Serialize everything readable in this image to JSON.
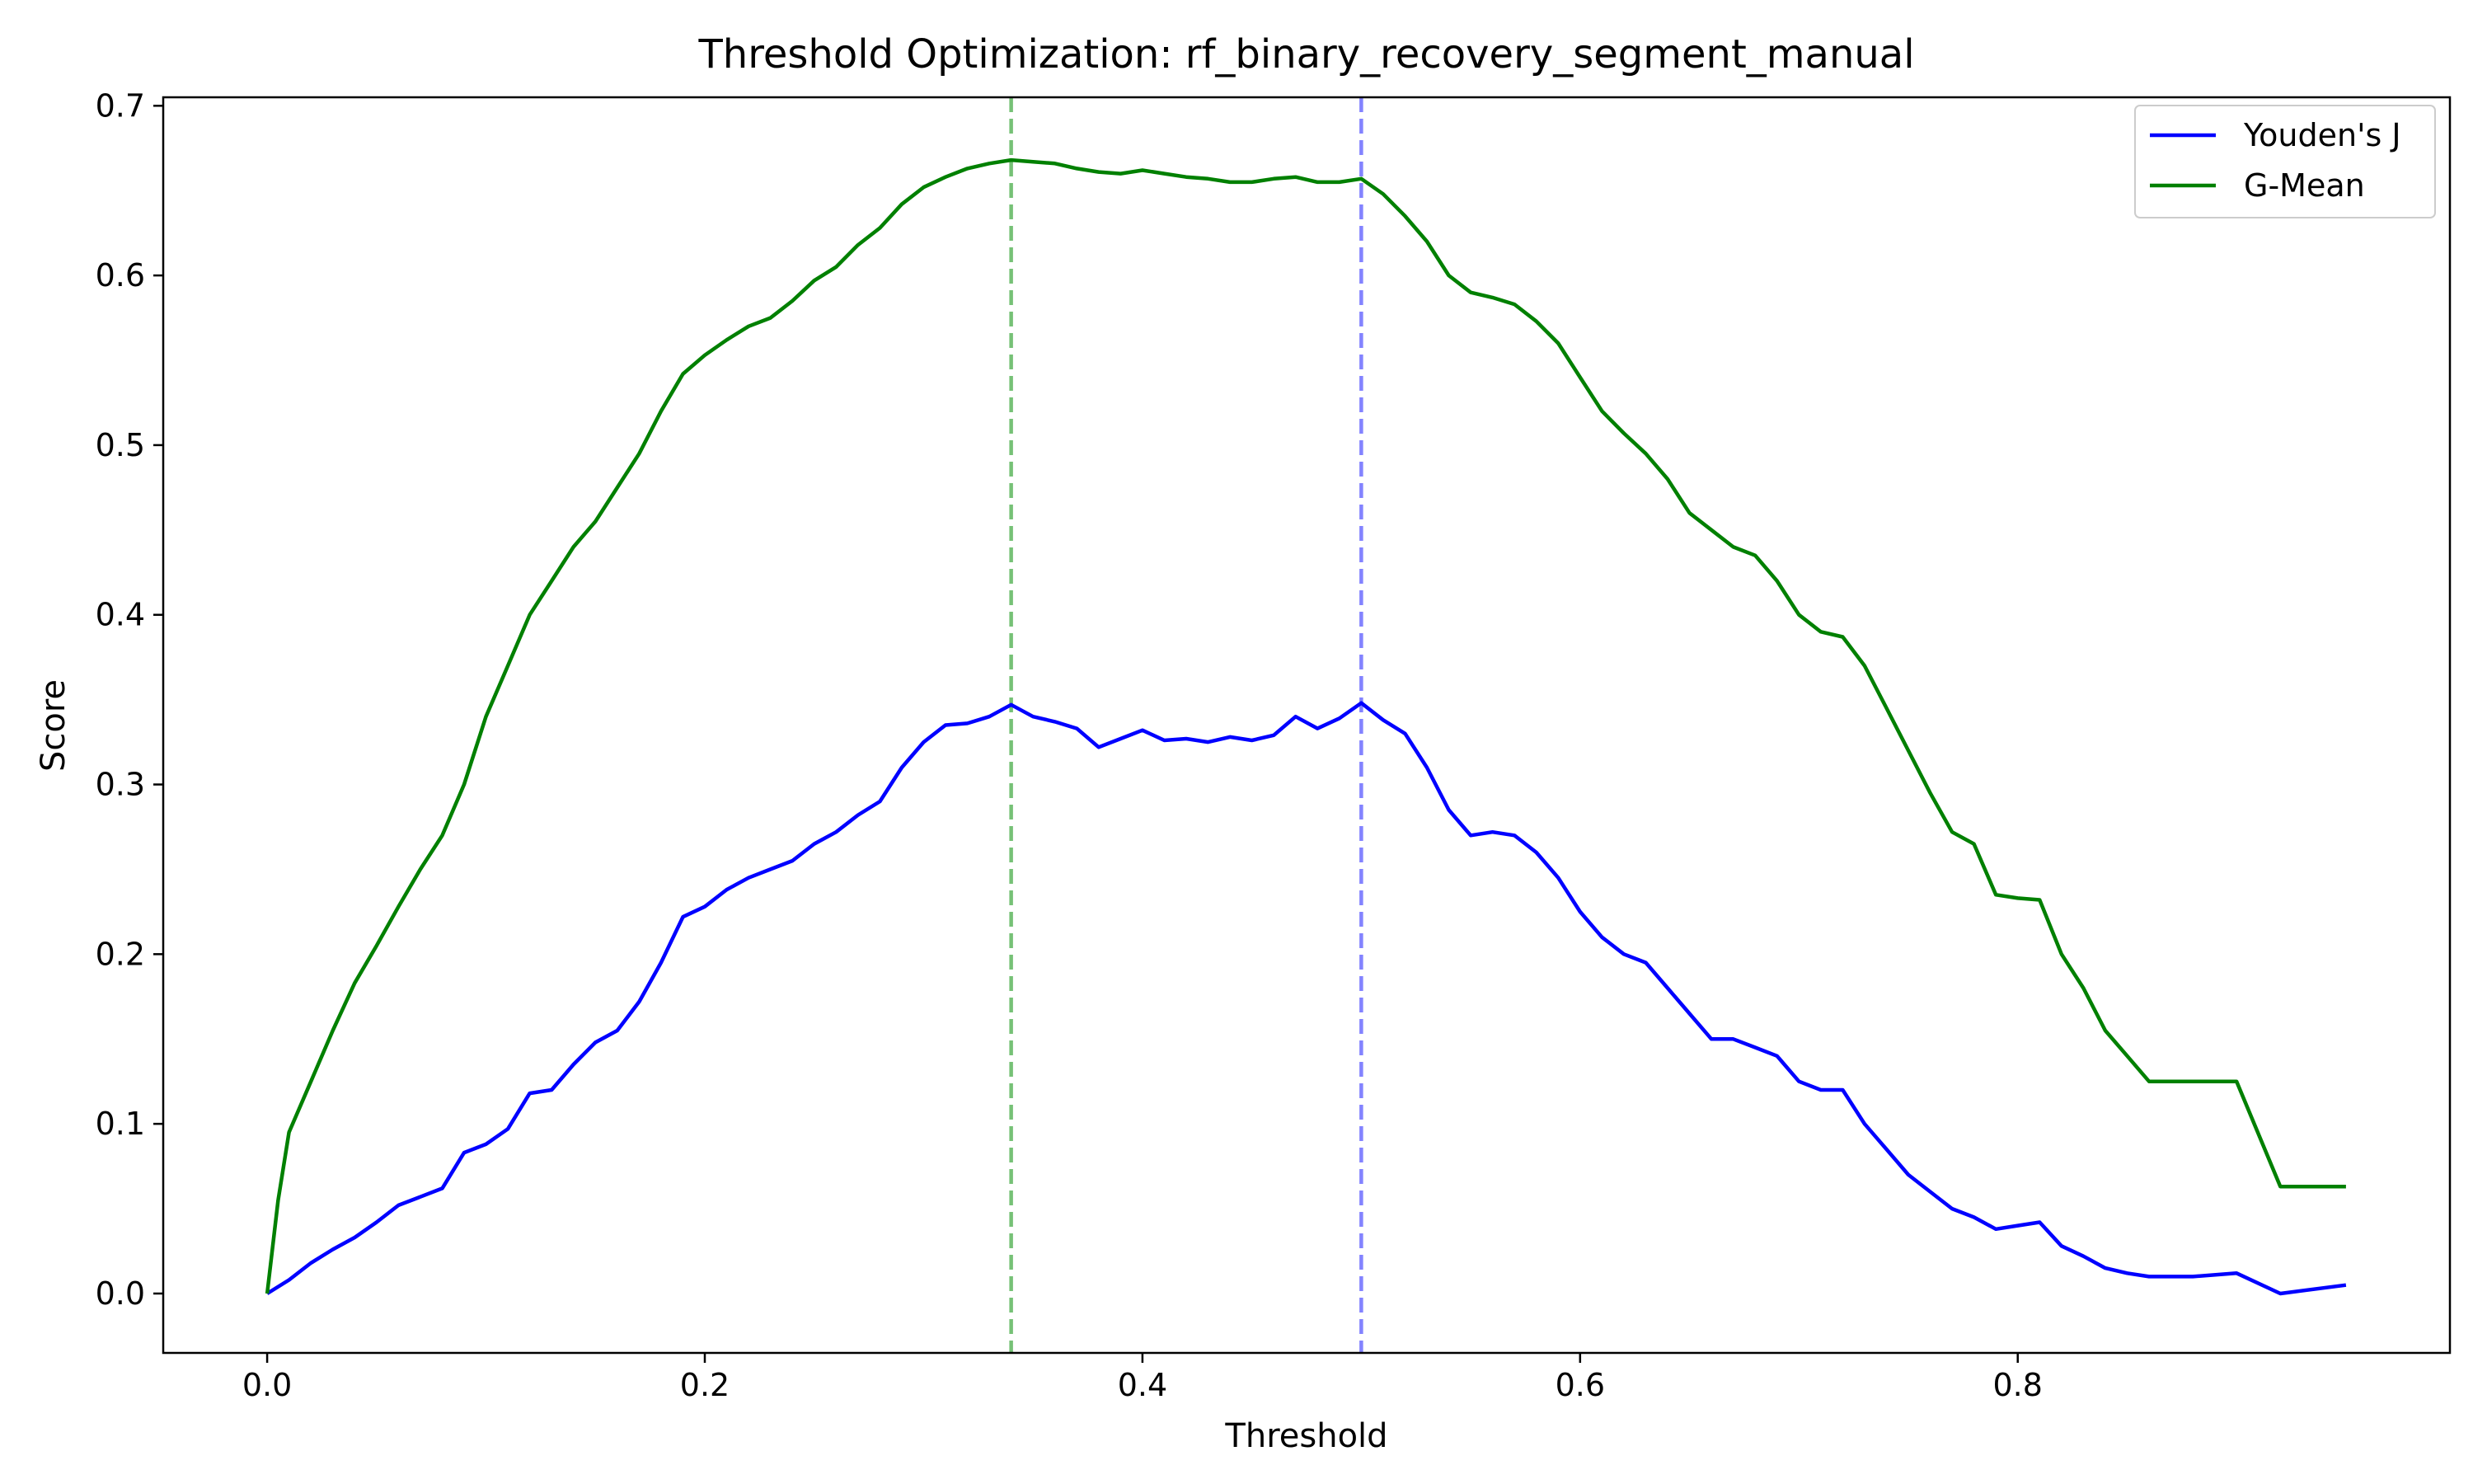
{
  "chart_data": {
    "type": "line",
    "title": "Threshold Optimization: rf_binary_recovery_segment_manual",
    "xlabel": "Threshold",
    "ylabel": "Score",
    "xlim": [
      -0.0475,
      0.9975
    ],
    "ylim": [
      -0.035,
      0.705
    ],
    "x_ticks": [
      0.0,
      0.2,
      0.4,
      0.6,
      0.8
    ],
    "x_tick_labels": [
      "0.0",
      "0.2",
      "0.4",
      "0.6",
      "0.8"
    ],
    "y_ticks": [
      0.0,
      0.1,
      0.2,
      0.3,
      0.4,
      0.5,
      0.6,
      0.7
    ],
    "y_tick_labels": [
      "0.0",
      "0.1",
      "0.2",
      "0.3",
      "0.4",
      "0.5",
      "0.6",
      "0.7"
    ],
    "grid": false,
    "legend_position": "top-right",
    "vlines": [
      {
        "x": 0.34,
        "color": "#2ca02c",
        "series": "G-Mean"
      },
      {
        "x": 0.5,
        "color": "#4040ff",
        "series": "Youden's J"
      }
    ],
    "series": [
      {
        "name": "Youden's J",
        "color": "#0000ff",
        "x": [
          0.0,
          0.01,
          0.02,
          0.03,
          0.04,
          0.05,
          0.06,
          0.07,
          0.08,
          0.09,
          0.1,
          0.11,
          0.12,
          0.13,
          0.14,
          0.15,
          0.16,
          0.17,
          0.18,
          0.19,
          0.2,
          0.21,
          0.22,
          0.23,
          0.24,
          0.25,
          0.26,
          0.27,
          0.28,
          0.29,
          0.3,
          0.31,
          0.32,
          0.33,
          0.34,
          0.35,
          0.36,
          0.37,
          0.38,
          0.39,
          0.4,
          0.41,
          0.42,
          0.43,
          0.44,
          0.45,
          0.46,
          0.47,
          0.48,
          0.49,
          0.5,
          0.51,
          0.52,
          0.53,
          0.54,
          0.55,
          0.56,
          0.57,
          0.58,
          0.59,
          0.6,
          0.61,
          0.62,
          0.63,
          0.64,
          0.65,
          0.66,
          0.67,
          0.68,
          0.69,
          0.7,
          0.71,
          0.72,
          0.73,
          0.74,
          0.75,
          0.76,
          0.77,
          0.78,
          0.79,
          0.8,
          0.81,
          0.82,
          0.83,
          0.84,
          0.85,
          0.86,
          0.88,
          0.9,
          0.92,
          0.95
        ],
        "values": [
          0.0,
          0.008,
          0.018,
          0.026,
          0.033,
          0.042,
          0.052,
          0.057,
          0.062,
          0.083,
          0.088,
          0.097,
          0.118,
          0.12,
          0.135,
          0.148,
          0.155,
          0.172,
          0.195,
          0.222,
          0.228,
          0.238,
          0.245,
          0.25,
          0.255,
          0.265,
          0.272,
          0.282,
          0.29,
          0.31,
          0.325,
          0.335,
          0.336,
          0.34,
          0.347,
          0.34,
          0.337,
          0.333,
          0.322,
          0.327,
          0.332,
          0.326,
          0.327,
          0.325,
          0.328,
          0.326,
          0.329,
          0.34,
          0.333,
          0.339,
          0.348,
          0.338,
          0.33,
          0.31,
          0.285,
          0.27,
          0.272,
          0.27,
          0.26,
          0.245,
          0.225,
          0.21,
          0.2,
          0.195,
          0.18,
          0.165,
          0.15,
          0.15,
          0.145,
          0.14,
          0.125,
          0.12,
          0.12,
          0.1,
          0.085,
          0.07,
          0.06,
          0.05,
          0.045,
          0.038,
          0.04,
          0.042,
          0.028,
          0.022,
          0.015,
          0.012,
          0.01,
          0.01,
          0.012,
          0.0,
          0.005
        ]
      },
      {
        "name": "G-Mean",
        "color": "#008000",
        "x": [
          0.0,
          0.005,
          0.01,
          0.02,
          0.03,
          0.04,
          0.05,
          0.06,
          0.07,
          0.08,
          0.09,
          0.1,
          0.11,
          0.12,
          0.13,
          0.14,
          0.15,
          0.16,
          0.17,
          0.18,
          0.19,
          0.2,
          0.21,
          0.22,
          0.23,
          0.24,
          0.25,
          0.26,
          0.27,
          0.28,
          0.29,
          0.3,
          0.31,
          0.32,
          0.33,
          0.34,
          0.35,
          0.36,
          0.37,
          0.38,
          0.39,
          0.4,
          0.41,
          0.42,
          0.43,
          0.44,
          0.45,
          0.46,
          0.47,
          0.48,
          0.49,
          0.5,
          0.51,
          0.52,
          0.53,
          0.54,
          0.55,
          0.56,
          0.57,
          0.58,
          0.59,
          0.6,
          0.61,
          0.62,
          0.63,
          0.64,
          0.65,
          0.66,
          0.67,
          0.68,
          0.69,
          0.7,
          0.71,
          0.72,
          0.73,
          0.74,
          0.75,
          0.76,
          0.77,
          0.78,
          0.79,
          0.8,
          0.81,
          0.82,
          0.83,
          0.84,
          0.85,
          0.86,
          0.88,
          0.9,
          0.92,
          0.95
        ],
        "values": [
          0.0,
          0.055,
          0.095,
          0.125,
          0.155,
          0.183,
          0.205,
          0.228,
          0.25,
          0.27,
          0.3,
          0.34,
          0.37,
          0.4,
          0.42,
          0.44,
          0.455,
          0.475,
          0.495,
          0.52,
          0.542,
          0.553,
          0.562,
          0.57,
          0.575,
          0.585,
          0.597,
          0.605,
          0.618,
          0.628,
          0.642,
          0.652,
          0.658,
          0.663,
          0.666,
          0.668,
          0.667,
          0.666,
          0.663,
          0.661,
          0.66,
          0.662,
          0.66,
          0.658,
          0.657,
          0.655,
          0.655,
          0.657,
          0.658,
          0.655,
          0.655,
          0.657,
          0.648,
          0.635,
          0.62,
          0.6,
          0.59,
          0.587,
          0.583,
          0.573,
          0.56,
          0.54,
          0.52,
          0.507,
          0.495,
          0.48,
          0.46,
          0.45,
          0.44,
          0.435,
          0.42,
          0.4,
          0.39,
          0.387,
          0.37,
          0.345,
          0.32,
          0.295,
          0.272,
          0.265,
          0.235,
          0.233,
          0.232,
          0.2,
          0.18,
          0.155,
          0.14,
          0.125,
          0.125,
          0.125,
          0.063,
          0.063
        ]
      }
    ]
  }
}
